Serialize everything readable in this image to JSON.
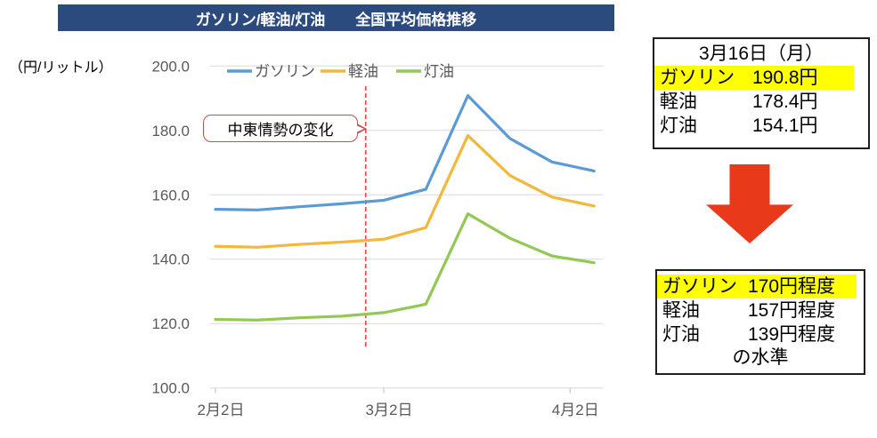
{
  "title_bar": {
    "text": "ガソリン/軽油/灯油　　全国平均価格推移"
  },
  "unit_label": "（円/リットル）",
  "annotation": {
    "text": "中東情勢の変化"
  },
  "colors": {
    "title_bar_bg": "#2B4A7D",
    "title_text": "#FFFFFF",
    "highlight": "#FFFF00",
    "arrow": "#E8391A",
    "event_line": "#FF4040",
    "bubble_border": "#C0504D",
    "axis_text": "#595959",
    "gridline": "#D9D9D9",
    "axis_line": "#BFBFBF"
  },
  "chart_data": {
    "type": "line",
    "title": "ガソリン/軽油/灯油 全国平均価格推移",
    "ylabel": "（円/リットル）",
    "ylim": [
      100,
      200
    ],
    "grid": true,
    "legend_position": "top",
    "yticks": [
      {
        "v": 100,
        "label": "100.0"
      },
      {
        "v": 120,
        "label": "120.0"
      },
      {
        "v": 140,
        "label": "140.0"
      },
      {
        "v": 160,
        "label": "160.0"
      },
      {
        "v": 180,
        "label": "180.0"
      },
      {
        "v": 200,
        "label": "200.0"
      }
    ],
    "xticks": [
      {
        "day": 0,
        "label": "2月2日"
      },
      {
        "day": 28,
        "label": "3月2日"
      },
      {
        "day": 59,
        "label": "4月2日"
      }
    ],
    "x_day_offsets": [
      0,
      7,
      14,
      21,
      28,
      35,
      42,
      49,
      56,
      63
    ],
    "series": [
      {
        "name": "ガソリン",
        "color": "#5B9BD5",
        "values": [
          155.5,
          155.3,
          156.3,
          157.2,
          158.3,
          161.7,
          190.8,
          177.5,
          170.2,
          167.4
        ]
      },
      {
        "name": "軽油",
        "color": "#F2B73C",
        "values": [
          144.0,
          143.7,
          144.6,
          145.3,
          146.2,
          149.8,
          178.4,
          166.0,
          159.3,
          156.5
        ]
      },
      {
        "name": "灯油",
        "color": "#92C853",
        "values": [
          121.3,
          121.1,
          121.8,
          122.3,
          123.4,
          126.0,
          154.1,
          146.5,
          141.0,
          138.9
        ]
      }
    ],
    "event_line": {
      "day": 25,
      "label": "中東情勢の変化"
    }
  },
  "summary_box": {
    "title": "3月16日（月）",
    "rows": [
      {
        "label": "ガソリン",
        "value": "190.8円"
      },
      {
        "label": "軽油",
        "value": "178.4円"
      },
      {
        "label": "灯油",
        "value": "154.1円"
      }
    ]
  },
  "result_box": {
    "rows": [
      {
        "label": "ガソリン",
        "value": "170円程度"
      },
      {
        "label": "軽油",
        "value": "157円程度"
      },
      {
        "label": "灯油",
        "value": "139円程度"
      }
    ],
    "footer": "の水準"
  }
}
